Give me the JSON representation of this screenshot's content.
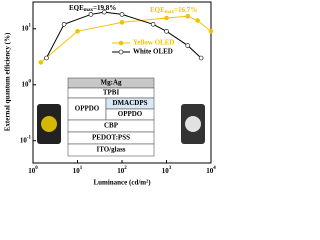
{
  "chart_data": {
    "type": "line",
    "xlabel": "Luminance (cd/m²)",
    "ylabel": "External quantum efficiency (%)",
    "xscale": "log",
    "yscale": "log",
    "xlim": [
      1,
      10000
    ],
    "ylim": [
      0.04,
      30
    ],
    "xticks": [
      {
        "value": 1,
        "label": "10",
        "sup": "0"
      },
      {
        "value": 10,
        "label": "10",
        "sup": "1"
      },
      {
        "value": 100,
        "label": "10",
        "sup": "2"
      },
      {
        "value": 1000,
        "label": "10",
        "sup": "3"
      },
      {
        "value": 10000,
        "label": "10",
        "sup": "4"
      }
    ],
    "yticks": [
      {
        "value": 0.1,
        "label": "10",
        "sup": "-1"
      },
      {
        "value": 1,
        "label": "10",
        "sup": "0"
      },
      {
        "value": 10,
        "label": "10",
        "sup": "1"
      }
    ],
    "series": [
      {
        "name": "Yellow OLED",
        "color": "#f2c200",
        "x": [
          1.5,
          10,
          100,
          1000,
          3000,
          5000,
          10000
        ],
        "values": [
          2.5,
          9,
          13,
          15.5,
          16.7,
          14,
          9
        ]
      },
      {
        "name": "White OLED",
        "color": "#ffffff",
        "x": [
          2,
          5,
          20,
          40,
          100,
          500,
          1000,
          3000,
          6000
        ],
        "values": [
          3,
          12,
          18,
          19.8,
          18,
          12,
          9,
          5,
          3
        ]
      }
    ],
    "annotations": [
      {
        "text": "EQE",
        "sub": "max",
        "rest": "=19.8%",
        "color": "#000000"
      },
      {
        "text": "EQE",
        "sub": "max",
        "rest": "=16.7%",
        "color": "#f2c200"
      }
    ]
  },
  "inset": {
    "layers": [
      "Mg:Ag",
      "TPBI",
      "OPPDO",
      "DMACDPS",
      "OPPDO",
      "CBP",
      "PEDOT:PSS",
      "ITO/glass"
    ]
  }
}
